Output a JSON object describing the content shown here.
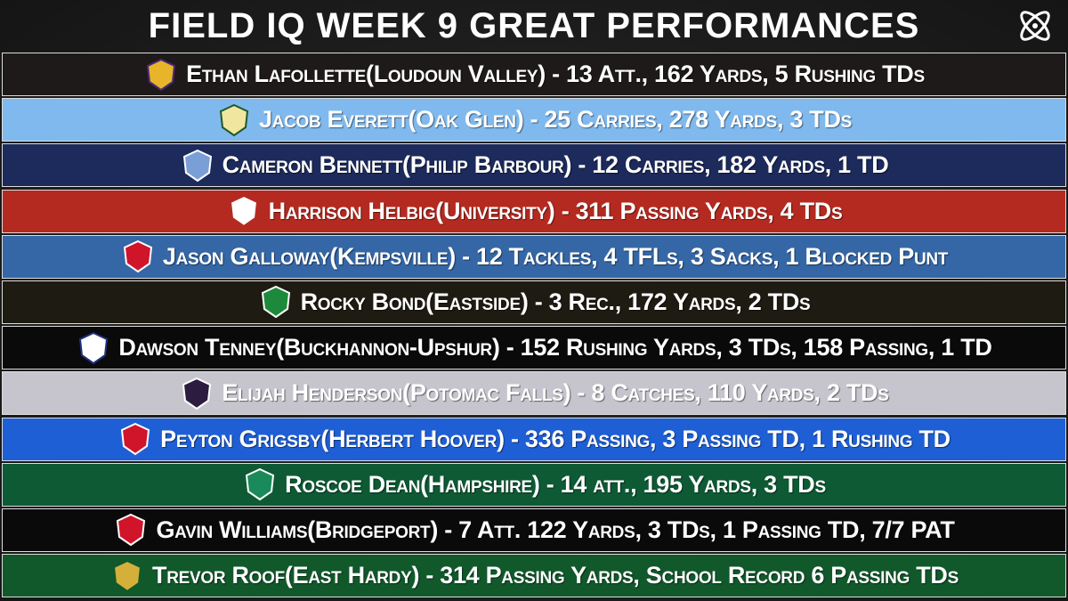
{
  "header": {
    "title": "FIELD IQ WEEK 9 GREAT PERFORMANCES"
  },
  "rows": [
    {
      "text": "Ethan Lafollette(Loudoun Valley) - 13 Att., 162 Yards, 5 Rushing TDs"
    },
    {
      "text": "Jacob Everett(Oak Glen) - 25 Carries, 278 Yards, 3 TDs"
    },
    {
      "text": "Cameron Bennett(Philip Barbour) - 12 Carries, 182 Yards, 1 TD"
    },
    {
      "text": "Harrison Helbig(University) - 311 Passing Yards, 4 TDs"
    },
    {
      "text": "Jason Galloway(Kempsville) - 12 Tackles, 4 TFLs, 3 Sacks, 1 Blocked Punt"
    },
    {
      "text": "Rocky Bond(Eastside) - 3 Rec., 172 Yards, 2 TDs"
    },
    {
      "text": "Dawson Tenney(Buckhannon-Upshur) - 152 Rushing Yards, 3 TDs, 158 Passing, 1 TD"
    },
    {
      "text": "Elijah Henderson(Potomac Falls) - 8 Catches, 110 Yards, 2 TDs"
    },
    {
      "text": "Peyton Grigsby(Herbert Hoover) - 336 Passing, 3 Passing TD, 1 Rushing TD"
    },
    {
      "text": "Roscoe Dean(Hampshire) - 14 att., 195 Yards, 3 TDs"
    },
    {
      "text": "Gavin Williams(Bridgeport) - 7 Att. 122 Yards, 3 TDs, 1 Passing TD, 7/7 PAT"
    },
    {
      "text": "Trevor Roof(East Hardy) - 314 Passing Yards, School Record 6 Passing TDs"
    }
  ]
}
